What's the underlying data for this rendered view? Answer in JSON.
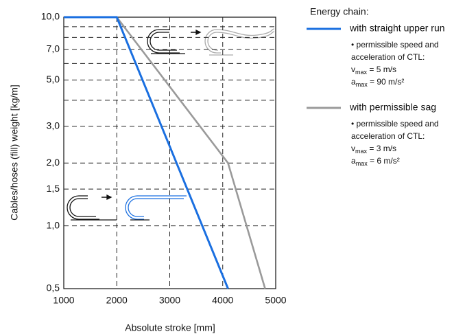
{
  "chart_data": {
    "type": "line",
    "xlabel": "Absolute stroke [mm]",
    "ylabel": "Cables/hoses (fill) weight [kg/m]",
    "xlim": [
      1000,
      5000
    ],
    "xticks": [
      1000,
      2000,
      3000,
      4000,
      5000
    ],
    "ylim": [
      0.5,
      10
    ],
    "log_y": true,
    "yticks": [
      {
        "value": 0.5,
        "label": "0,5"
      },
      {
        "value": 1,
        "label": "1,0"
      },
      {
        "value": 1.5,
        "label": "1,5"
      },
      {
        "value": 2,
        "label": "2,0"
      },
      {
        "value": 3,
        "label": "3,0"
      },
      {
        "value": 5,
        "label": "5,0"
      },
      {
        "value": 7,
        "label": "7,0"
      },
      {
        "value": 10,
        "label": "10,0"
      }
    ],
    "minor_yticks": [
      4,
      6,
      8,
      9
    ],
    "grid": true,
    "legend_title": "Energy chain:",
    "series": [
      {
        "name": "with straight upper run",
        "color": "#1a6fe0",
        "x": [
          1000,
          2000,
          4100
        ],
        "values": [
          10,
          10,
          0.5
        ],
        "notes": [
          "• permissible speed and",
          "acceleration of CTL:"
        ],
        "limits": [
          {
            "symbol": "v",
            "sub": "max",
            "rest": " = 5 m/s"
          },
          {
            "symbol": "a",
            "sub": "max",
            "rest": " = 90 m/s²"
          }
        ]
      },
      {
        "name": "with permissible sag",
        "color": "#9a9a9a",
        "x": [
          2000,
          4100,
          4800
        ],
        "values": [
          10,
          2,
          0.5
        ],
        "notes": [
          "• permissible speed and",
          "acceleration of CTL:"
        ],
        "limits": [
          {
            "symbol": "v",
            "sub": "max",
            "rest": " = 3 m/s"
          },
          {
            "symbol": "a",
            "sub": "max",
            "rest": " = 6 m/s²"
          }
        ]
      }
    ]
  }
}
